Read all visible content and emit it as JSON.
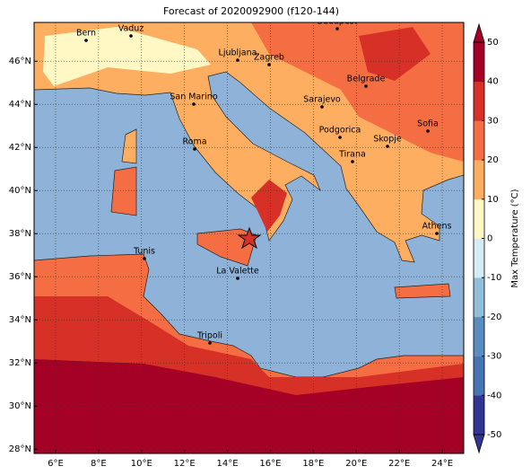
{
  "map": {
    "title": "Forecast of 2020092900 (f120-144)",
    "xlim": [
      5,
      25
    ],
    "ylim": [
      27.8,
      47.8
    ],
    "lon_ticks": [
      {
        "value": 6,
        "label": "6°E"
      },
      {
        "value": 8,
        "label": "8°E"
      },
      {
        "value": 10,
        "label": "10°E"
      },
      {
        "value": 12,
        "label": "12°E"
      },
      {
        "value": 14,
        "label": "14°E"
      },
      {
        "value": 16,
        "label": "16°E"
      },
      {
        "value": 18,
        "label": "18°E"
      },
      {
        "value": 20,
        "label": "20°E"
      },
      {
        "value": 22,
        "label": "22°E"
      },
      {
        "value": 24,
        "label": "24°E"
      }
    ],
    "lat_ticks": [
      {
        "value": 28,
        "label": "28°N"
      },
      {
        "value": 30,
        "label": "30°N"
      },
      {
        "value": 32,
        "label": "32°N"
      },
      {
        "value": 34,
        "label": "34°N"
      },
      {
        "value": 36,
        "label": "36°N"
      },
      {
        "value": 38,
        "label": "38°N"
      },
      {
        "value": 40,
        "label": "40°N"
      },
      {
        "value": 42,
        "label": "42°N"
      },
      {
        "value": 44,
        "label": "44°N"
      },
      {
        "value": 46,
        "label": "46°N"
      }
    ],
    "cities": [
      "Bern",
      "Vaduz",
      "Budapest",
      "Ljubljana",
      "Zagreb",
      "Belgrade",
      "San Marino",
      "Sarajevo",
      "Podgorica",
      "Sofia",
      "Skopje",
      "Roma",
      "Tirana",
      "Athens",
      "Tunis",
      "La Valette",
      "Tripoli"
    ],
    "colorbar": {
      "label": "Max Temperature (°C)",
      "lim": [
        -50,
        50
      ],
      "ticks": [
        -50,
        -40,
        -30,
        -20,
        -10,
        0,
        10,
        20,
        30,
        40,
        50
      ],
      "colors": [
        "#313695",
        "#4575b4",
        "#5b8cc0",
        "#91bfdb",
        "#d4ecf4",
        "#fff8c4",
        "#fdae61",
        "#f46d43",
        "#d73027",
        "#a50026"
      ]
    }
  }
}
